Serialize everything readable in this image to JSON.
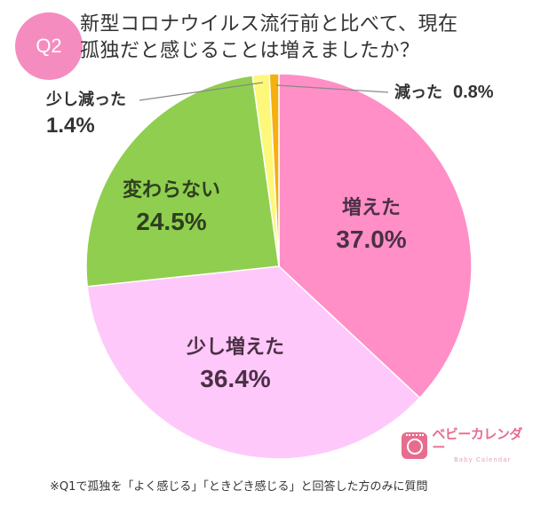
{
  "header": {
    "badge": "Q2",
    "title_line1": "新型コロナウイルス流行前と比べて、現在",
    "title_line2": "孤独だと感じることは増えましたか？"
  },
  "chart_data": {
    "type": "pie",
    "title": "新型コロナウイルス流行前と比べて、現在孤独だと感じることは増えましたか？",
    "start_angle": "12 o'clock, clockwise",
    "categories": [
      "増えた",
      "少し増えた",
      "変わらない",
      "少し減った",
      "減った"
    ],
    "values": [
      37.0,
      36.4,
      24.5,
      1.4,
      0.8
    ],
    "unit": "%",
    "colors": [
      "#ff8fc6",
      "#ffc8fa",
      "#8fce4f",
      "#fdf87a",
      "#f5b00f"
    ],
    "labels": [
      {
        "label": "増えた",
        "pct": "37.0%",
        "text_color": "#4a3045"
      },
      {
        "label": "少し増えた",
        "pct": "36.4%",
        "text_color": "#4a3045"
      },
      {
        "label": "変わらない",
        "pct": "24.5%",
        "text_color": "#2e3f1e"
      },
      {
        "label": "少し減った",
        "pct": "1.4%",
        "text_color": "#333333"
      },
      {
        "label": "減った",
        "pct": "0.8%",
        "text_color": "#333333"
      }
    ]
  },
  "logo": {
    "name_jp": "ベビーカレンダー",
    "name_en": "Baby Calendar"
  },
  "footnote": "※Q1で孤独を「よく感じる」「ときどき感じる」と回答した方のみに質問"
}
